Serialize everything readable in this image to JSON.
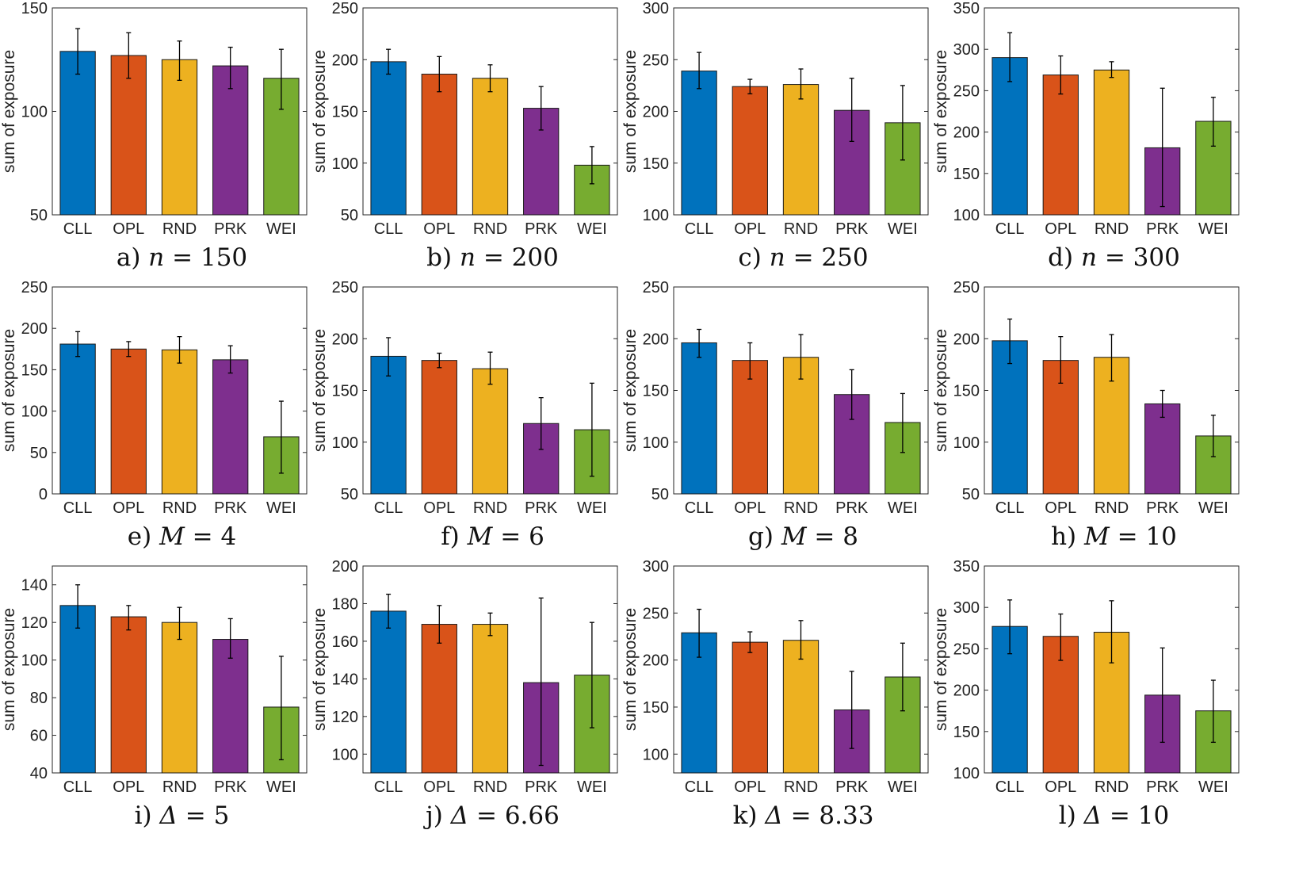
{
  "colors": {
    "CLL": "#0072BD",
    "OPL": "#D95319",
    "RND": "#EDB120",
    "PRK": "#7E2F8E",
    "WEI": "#77AC30"
  },
  "chart_data": [
    {
      "type": "bar",
      "caption": {
        "prefix": "a)",
        "var": "n",
        "rel": "=",
        "value": "150"
      },
      "ylabel": "sum of exposure",
      "categories": [
        "CLL",
        "OPL",
        "RND",
        "PRK",
        "WEI"
      ],
      "ylim": [
        50,
        150
      ],
      "yticks": [
        50,
        100,
        150
      ],
      "values": [
        129,
        127,
        125,
        122,
        116
      ],
      "err_low": [
        118,
        116,
        115,
        111,
        101
      ],
      "err_high": [
        140,
        138,
        134,
        131,
        130
      ]
    },
    {
      "type": "bar",
      "caption": {
        "prefix": "b)",
        "var": "n",
        "rel": "=",
        "value": "200"
      },
      "ylabel": "sum of exposure",
      "categories": [
        "CLL",
        "OPL",
        "RND",
        "PRK",
        "WEI"
      ],
      "ylim": [
        50,
        250
      ],
      "yticks": [
        50,
        100,
        150,
        200,
        250
      ],
      "values": [
        198,
        186,
        182,
        153,
        98
      ],
      "err_low": [
        186,
        169,
        169,
        132,
        80
      ],
      "err_high": [
        210,
        203,
        195,
        174,
        116
      ]
    },
    {
      "type": "bar",
      "caption": {
        "prefix": "c)",
        "var": "n",
        "rel": "=",
        "value": "250"
      },
      "ylabel": "sum of exposure",
      "categories": [
        "CLL",
        "OPL",
        "RND",
        "PRK",
        "WEI"
      ],
      "ylim": [
        100,
        300
      ],
      "yticks": [
        100,
        150,
        200,
        250,
        300
      ],
      "values": [
        239,
        224,
        226,
        201,
        189
      ],
      "err_low": [
        222,
        217,
        212,
        171,
        153
      ],
      "err_high": [
        257,
        231,
        241,
        232,
        225
      ]
    },
    {
      "type": "bar",
      "caption": {
        "prefix": "d)",
        "var": "n",
        "rel": "=",
        "value": "300"
      },
      "ylabel": "sum of exposure",
      "categories": [
        "CLL",
        "OPL",
        "RND",
        "PRK",
        "WEI"
      ],
      "ylim": [
        100,
        350
      ],
      "yticks": [
        100,
        150,
        200,
        250,
        300,
        350
      ],
      "values": [
        290,
        269,
        275,
        181,
        213
      ],
      "err_low": [
        261,
        246,
        266,
        110,
        183
      ],
      "err_high": [
        320,
        292,
        285,
        253,
        242
      ]
    },
    {
      "type": "bar",
      "caption": {
        "prefix": "e)",
        "var": "M",
        "rel": "=",
        "value": "4"
      },
      "ylabel": "sum of exposure",
      "categories": [
        "CLL",
        "OPL",
        "RND",
        "PRK",
        "WEI"
      ],
      "ylim": [
        0,
        250
      ],
      "yticks": [
        0,
        50,
        100,
        150,
        200,
        250
      ],
      "values": [
        181,
        175,
        174,
        162,
        69
      ],
      "err_low": [
        166,
        166,
        158,
        146,
        25
      ],
      "err_high": [
        196,
        184,
        190,
        179,
        112
      ]
    },
    {
      "type": "bar",
      "caption": {
        "prefix": "f)",
        "var": "M",
        "rel": "=",
        "value": "6"
      },
      "ylabel": "sum of exposure",
      "categories": [
        "CLL",
        "OPL",
        "RND",
        "PRK",
        "WEI"
      ],
      "ylim": [
        50,
        250
      ],
      "yticks": [
        50,
        100,
        150,
        200,
        250
      ],
      "values": [
        183,
        179,
        171,
        118,
        112
      ],
      "err_low": [
        164,
        172,
        156,
        93,
        67
      ],
      "err_high": [
        201,
        186,
        187,
        143,
        157
      ]
    },
    {
      "type": "bar",
      "caption": {
        "prefix": "g)",
        "var": "M",
        "rel": "=",
        "value": "8"
      },
      "ylabel": "sum of exposure",
      "categories": [
        "CLL",
        "OPL",
        "RND",
        "PRK",
        "WEI"
      ],
      "ylim": [
        50,
        250
      ],
      "yticks": [
        50,
        100,
        150,
        200,
        250
      ],
      "values": [
        196,
        179,
        182,
        146,
        119
      ],
      "err_low": [
        182,
        161,
        161,
        122,
        90
      ],
      "err_high": [
        209,
        196,
        204,
        170,
        147
      ]
    },
    {
      "type": "bar",
      "caption": {
        "prefix": "h)",
        "var": "M",
        "rel": "=",
        "value": "10"
      },
      "ylabel": "sum of exposure",
      "categories": [
        "CLL",
        "OPL",
        "RND",
        "PRK",
        "WEI"
      ],
      "ylim": [
        50,
        250
      ],
      "yticks": [
        50,
        100,
        150,
        200,
        250
      ],
      "values": [
        198,
        179,
        182,
        137,
        106
      ],
      "err_low": [
        176,
        157,
        159,
        124,
        86
      ],
      "err_high": [
        219,
        202,
        204,
        150,
        126
      ]
    },
    {
      "type": "bar",
      "caption": {
        "prefix": "i)",
        "var": "Δ",
        "rel": "=",
        "value": "5"
      },
      "ylabel": "sum of exposure",
      "categories": [
        "CLL",
        "OPL",
        "RND",
        "PRK",
        "WEI"
      ],
      "ylim": [
        40,
        150
      ],
      "yticks": [
        40,
        60,
        80,
        100,
        120,
        140
      ],
      "values": [
        129,
        123,
        120,
        111,
        75
      ],
      "err_low": [
        117,
        116,
        111,
        101,
        47
      ],
      "err_high": [
        140,
        129,
        128,
        122,
        102
      ]
    },
    {
      "type": "bar",
      "caption": {
        "prefix": "j)",
        "var": "Δ",
        "rel": "=",
        "value": "6.66"
      },
      "ylabel": "sum of exposure",
      "categories": [
        "CLL",
        "OPL",
        "RND",
        "PRK",
        "WEI"
      ],
      "ylim": [
        90,
        200
      ],
      "yticks": [
        100,
        120,
        140,
        160,
        180,
        200
      ],
      "values": [
        176,
        169,
        169,
        138,
        142
      ],
      "err_low": [
        167,
        159,
        163,
        94,
        114
      ],
      "err_high": [
        185,
        179,
        175,
        183,
        170
      ]
    },
    {
      "type": "bar",
      "caption": {
        "prefix": "k)",
        "var": "Δ",
        "rel": "=",
        "value": "8.33"
      },
      "ylabel": "sum of exposure",
      "categories": [
        "CLL",
        "OPL",
        "RND",
        "PRK",
        "WEI"
      ],
      "ylim": [
        80,
        300
      ],
      "yticks": [
        100,
        150,
        200,
        250,
        300
      ],
      "values": [
        229,
        219,
        221,
        147,
        182
      ],
      "err_low": [
        203,
        208,
        201,
        106,
        146
      ],
      "err_high": [
        254,
        230,
        242,
        188,
        218
      ]
    },
    {
      "type": "bar",
      "caption": {
        "prefix": "l)",
        "var": "Δ",
        "rel": "=",
        "value": "10"
      },
      "ylabel": "sum of exposure",
      "categories": [
        "CLL",
        "OPL",
        "RND",
        "PRK",
        "WEI"
      ],
      "ylim": [
        100,
        350
      ],
      "yticks": [
        100,
        150,
        200,
        250,
        300,
        350
      ],
      "values": [
        277,
        265,
        270,
        194,
        175
      ],
      "err_low": [
        244,
        236,
        233,
        137,
        137
      ],
      "err_high": [
        309,
        292,
        308,
        251,
        212
      ]
    }
  ]
}
